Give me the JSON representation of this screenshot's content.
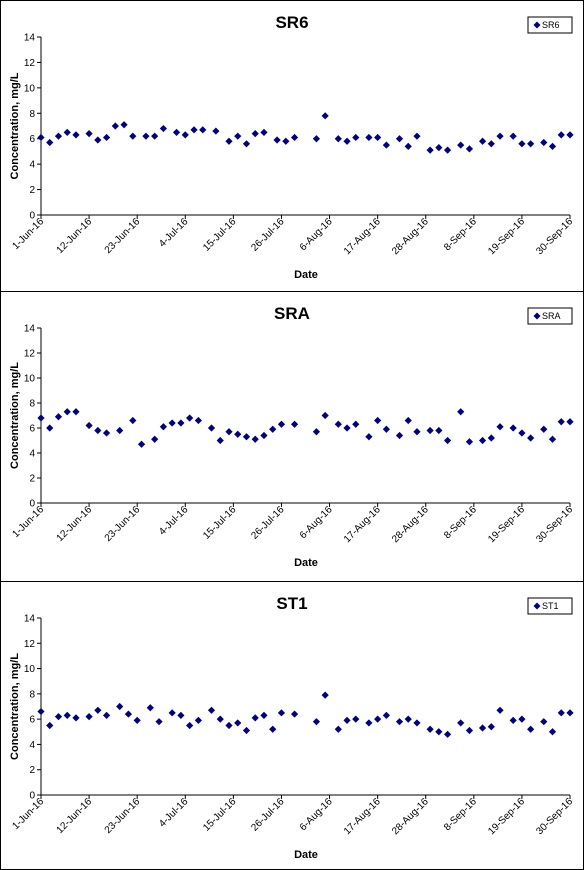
{
  "chart_data": [
    {
      "type": "scatter",
      "title": "SR6",
      "xlabel": "Date",
      "ylabel": "Concentration, mg/L",
      "ylim": [
        0,
        14
      ],
      "yticks": [
        0,
        2,
        4,
        6,
        8,
        10,
        12,
        14
      ],
      "xlim": [
        "2016-06-01",
        "2016-09-30"
      ],
      "xticks": [
        "1-Jun-16",
        "12-Jun-16",
        "23-Jun-16",
        "4-Jul-16",
        "15-Jul-16",
        "26-Jul-16",
        "6-Aug-16",
        "17-Aug-16",
        "28-Aug-16",
        "8-Sep-16",
        "19-Sep-16",
        "30-Sep-16"
      ],
      "grid": false,
      "legend_position": "top-right",
      "color": "#000080",
      "series": [
        {
          "name": "SR6",
          "x": [
            "2016-06-01",
            "2016-06-03",
            "2016-06-05",
            "2016-06-07",
            "2016-06-09",
            "2016-06-12",
            "2016-06-14",
            "2016-06-16",
            "2016-06-18",
            "2016-06-20",
            "2016-06-22",
            "2016-06-25",
            "2016-06-27",
            "2016-06-29",
            "2016-07-02",
            "2016-07-04",
            "2016-07-06",
            "2016-07-08",
            "2016-07-11",
            "2016-07-14",
            "2016-07-16",
            "2016-07-18",
            "2016-07-20",
            "2016-07-22",
            "2016-07-25",
            "2016-07-27",
            "2016-07-29",
            "2016-08-03",
            "2016-08-05",
            "2016-08-08",
            "2016-08-10",
            "2016-08-12",
            "2016-08-15",
            "2016-08-17",
            "2016-08-19",
            "2016-08-22",
            "2016-08-24",
            "2016-08-26",
            "2016-08-29",
            "2016-08-31",
            "2016-09-02",
            "2016-09-05",
            "2016-09-07",
            "2016-09-10",
            "2016-09-12",
            "2016-09-14",
            "2016-09-17",
            "2016-09-19",
            "2016-09-21",
            "2016-09-24",
            "2016-09-26",
            "2016-09-28",
            "2016-09-30"
          ],
          "y": [
            6.1,
            5.7,
            6.2,
            6.5,
            6.3,
            6.4,
            5.9,
            6.1,
            7.0,
            7.1,
            6.2,
            6.2,
            6.2,
            6.8,
            6.5,
            6.3,
            6.7,
            6.7,
            6.6,
            5.8,
            6.2,
            5.6,
            6.4,
            6.5,
            5.9,
            5.8,
            6.1,
            6.0,
            7.8,
            6.0,
            5.8,
            6.1,
            6.1,
            6.1,
            5.5,
            6.0,
            5.4,
            6.2,
            5.1,
            5.3,
            5.1,
            5.5,
            5.2,
            5.8,
            5.6,
            6.2,
            6.2,
            5.6,
            5.6,
            5.7,
            5.4,
            6.3,
            6.3
          ]
        }
      ]
    },
    {
      "type": "scatter",
      "title": "SRA",
      "xlabel": "Date",
      "ylabel": "Concentration, mg/L",
      "ylim": [
        0,
        14
      ],
      "yticks": [
        0,
        2,
        4,
        6,
        8,
        10,
        12,
        14
      ],
      "xlim": [
        "2016-06-01",
        "2016-09-30"
      ],
      "xticks": [
        "1-Jun-16",
        "12-Jun-16",
        "23-Jun-16",
        "4-Jul-16",
        "15-Jul-16",
        "26-Jul-16",
        "6-Aug-16",
        "17-Aug-16",
        "28-Aug-16",
        "8-Sep-16",
        "19-Sep-16",
        "30-Sep-16"
      ],
      "grid": false,
      "legend_position": "top-right",
      "color": "#000080",
      "series": [
        {
          "name": "SRA",
          "x": [
            "2016-06-01",
            "2016-06-03",
            "2016-06-05",
            "2016-06-07",
            "2016-06-09",
            "2016-06-12",
            "2016-06-14",
            "2016-06-16",
            "2016-06-19",
            "2016-06-22",
            "2016-06-24",
            "2016-06-27",
            "2016-06-29",
            "2016-07-01",
            "2016-07-03",
            "2016-07-05",
            "2016-07-07",
            "2016-07-10",
            "2016-07-12",
            "2016-07-14",
            "2016-07-16",
            "2016-07-18",
            "2016-07-20",
            "2016-07-22",
            "2016-07-24",
            "2016-07-26",
            "2016-07-29",
            "2016-08-03",
            "2016-08-05",
            "2016-08-08",
            "2016-08-10",
            "2016-08-12",
            "2016-08-15",
            "2016-08-17",
            "2016-08-19",
            "2016-08-22",
            "2016-08-24",
            "2016-08-26",
            "2016-08-29",
            "2016-08-31",
            "2016-09-02",
            "2016-09-05",
            "2016-09-07",
            "2016-09-10",
            "2016-09-12",
            "2016-09-14",
            "2016-09-17",
            "2016-09-19",
            "2016-09-21",
            "2016-09-24",
            "2016-09-26",
            "2016-09-28",
            "2016-09-30"
          ],
          "y": [
            6.8,
            6.0,
            6.9,
            7.3,
            7.3,
            6.2,
            5.8,
            5.6,
            5.8,
            6.6,
            4.7,
            5.1,
            6.1,
            6.4,
            6.4,
            6.8,
            6.6,
            6.0,
            5.0,
            5.7,
            5.5,
            5.3,
            5.1,
            5.4,
            5.9,
            6.3,
            6.3,
            5.7,
            7.0,
            6.3,
            6.0,
            6.3,
            5.3,
            6.6,
            5.9,
            5.4,
            6.6,
            5.7,
            5.8,
            5.8,
            5.0,
            7.3,
            4.9,
            5.0,
            5.2,
            6.1,
            6.0,
            5.6,
            5.2,
            5.9,
            5.1,
            6.5,
            6.5
          ]
        }
      ]
    },
    {
      "type": "scatter",
      "title": "ST1",
      "xlabel": "Date",
      "ylabel": "Concentration, mg/L",
      "ylim": [
        0,
        14
      ],
      "yticks": [
        0,
        2,
        4,
        6,
        8,
        10,
        12,
        14
      ],
      "xlim": [
        "2016-06-01",
        "2016-09-30"
      ],
      "xticks": [
        "1-Jun-16",
        "12-Jun-16",
        "23-Jun-16",
        "4-Jul-16",
        "15-Jul-16",
        "26-Jul-16",
        "6-Aug-16",
        "17-Aug-16",
        "28-Aug-16",
        "8-Sep-16",
        "19-Sep-16",
        "30-Sep-16"
      ],
      "grid": false,
      "legend_position": "top-right",
      "color": "#000080",
      "series": [
        {
          "name": "ST1",
          "x": [
            "2016-06-01",
            "2016-06-03",
            "2016-06-05",
            "2016-06-07",
            "2016-06-09",
            "2016-06-12",
            "2016-06-14",
            "2016-06-16",
            "2016-06-19",
            "2016-06-21",
            "2016-06-23",
            "2016-06-26",
            "2016-06-28",
            "2016-07-01",
            "2016-07-03",
            "2016-07-05",
            "2016-07-07",
            "2016-07-10",
            "2016-07-12",
            "2016-07-14",
            "2016-07-16",
            "2016-07-18",
            "2016-07-20",
            "2016-07-22",
            "2016-07-24",
            "2016-07-26",
            "2016-07-29",
            "2016-08-03",
            "2016-08-05",
            "2016-08-08",
            "2016-08-10",
            "2016-08-12",
            "2016-08-15",
            "2016-08-17",
            "2016-08-19",
            "2016-08-22",
            "2016-08-24",
            "2016-08-26",
            "2016-08-29",
            "2016-08-31",
            "2016-09-02",
            "2016-09-05",
            "2016-09-07",
            "2016-09-10",
            "2016-09-12",
            "2016-09-14",
            "2016-09-17",
            "2016-09-19",
            "2016-09-21",
            "2016-09-24",
            "2016-09-26",
            "2016-09-28",
            "2016-09-30"
          ],
          "y": [
            6.6,
            5.5,
            6.2,
            6.3,
            6.1,
            6.2,
            6.7,
            6.3,
            7.0,
            6.4,
            5.9,
            6.9,
            5.8,
            6.5,
            6.3,
            5.5,
            5.9,
            6.7,
            6.0,
            5.5,
            5.7,
            5.1,
            6.1,
            6.3,
            5.2,
            6.5,
            6.4,
            5.8,
            7.9,
            5.2,
            5.9,
            6.0,
            5.7,
            6.0,
            6.3,
            5.8,
            6.0,
            5.7,
            5.2,
            5.0,
            4.8,
            5.7,
            5.1,
            5.3,
            5.4,
            6.7,
            5.9,
            6.0,
            5.2,
            5.8,
            5.0,
            6.5,
            6.5
          ]
        }
      ]
    }
  ]
}
